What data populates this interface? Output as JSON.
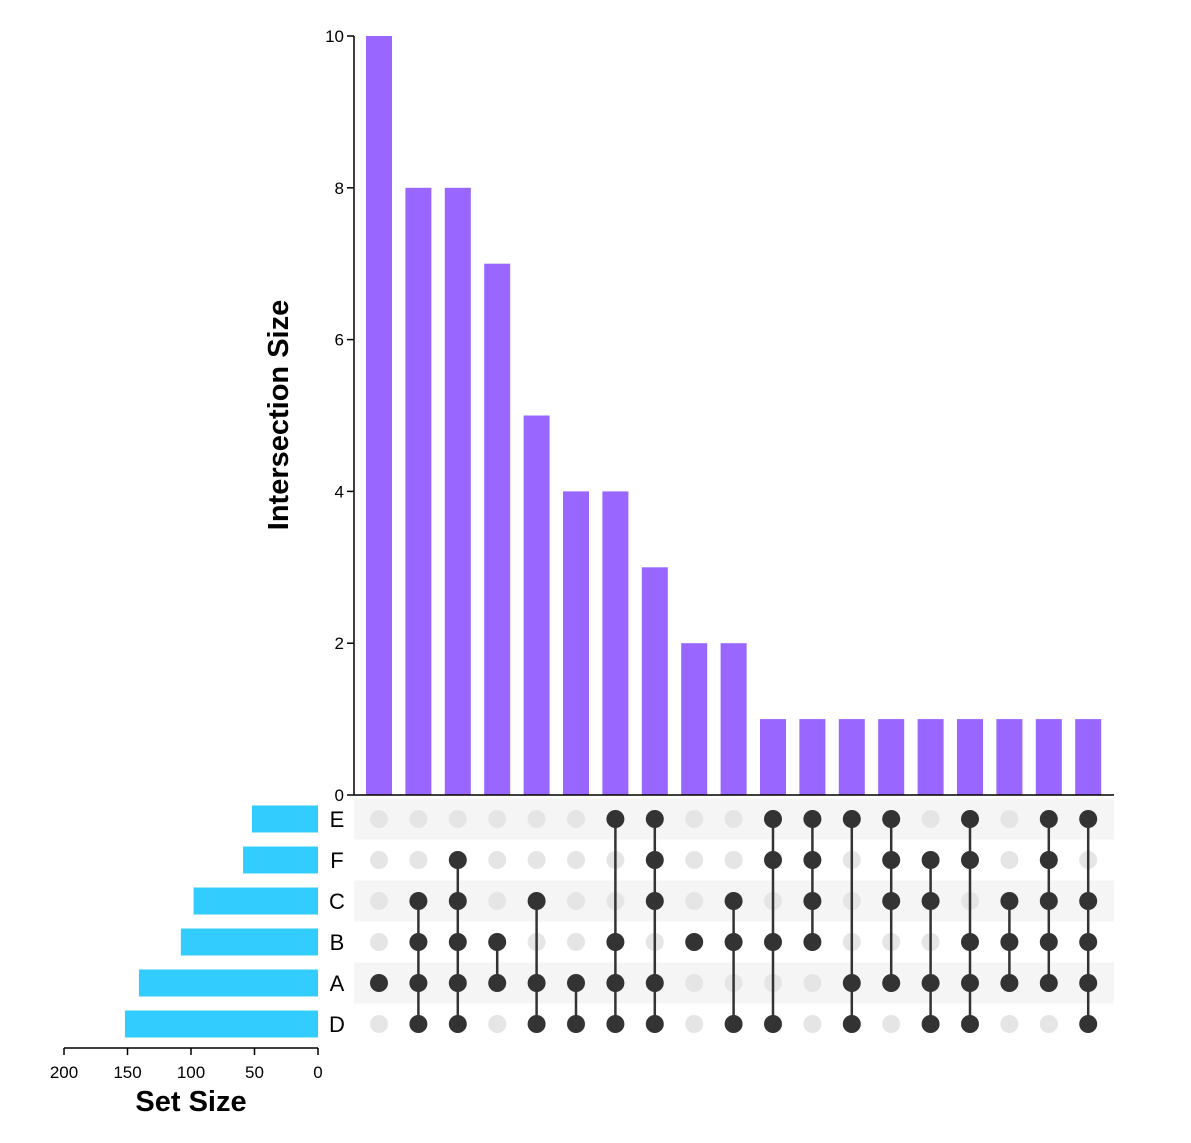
{
  "colors": {
    "intersection_bar": "#9966FF",
    "set_bar": "#33CCFF",
    "dot_active": "#333333",
    "dot_inactive": "#E5E5E5",
    "stripe": "#F5F5F5",
    "axis": "#000000"
  },
  "chart_data": {
    "type": "upset",
    "sets": [
      "E",
      "F",
      "C",
      "B",
      "A",
      "D"
    ],
    "set_sizes": [
      52,
      59,
      98,
      108,
      141,
      152
    ],
    "set_size_axis": {
      "label": "Set Size",
      "ticks": [
        200,
        150,
        100,
        50,
        0
      ],
      "range": [
        200,
        0
      ]
    },
    "intersection_axis": {
      "label": "Intersection Size",
      "ticks": [
        0,
        2,
        4,
        6,
        8,
        10
      ],
      "range": [
        0,
        10
      ]
    },
    "intersections": [
      {
        "size": 10,
        "sets": [
          "A"
        ]
      },
      {
        "size": 8,
        "sets": [
          "C",
          "B",
          "A",
          "D"
        ]
      },
      {
        "size": 8,
        "sets": [
          "F",
          "C",
          "B",
          "A",
          "D"
        ]
      },
      {
        "size": 7,
        "sets": [
          "B",
          "A"
        ]
      },
      {
        "size": 5,
        "sets": [
          "C",
          "A",
          "D"
        ]
      },
      {
        "size": 4,
        "sets": [
          "A",
          "D"
        ]
      },
      {
        "size": 4,
        "sets": [
          "E",
          "B",
          "A",
          "D"
        ]
      },
      {
        "size": 3,
        "sets": [
          "E",
          "F",
          "C",
          "A",
          "D"
        ]
      },
      {
        "size": 2,
        "sets": [
          "B"
        ]
      },
      {
        "size": 2,
        "sets": [
          "C",
          "B",
          "D"
        ]
      },
      {
        "size": 1,
        "sets": [
          "E",
          "F",
          "B",
          "D"
        ]
      },
      {
        "size": 1,
        "sets": [
          "E",
          "F",
          "C",
          "B"
        ]
      },
      {
        "size": 1,
        "sets": [
          "E",
          "A",
          "D"
        ]
      },
      {
        "size": 1,
        "sets": [
          "E",
          "F",
          "C",
          "A"
        ]
      },
      {
        "size": 1,
        "sets": [
          "F",
          "C",
          "A",
          "D"
        ]
      },
      {
        "size": 1,
        "sets": [
          "E",
          "F",
          "B",
          "A",
          "D"
        ]
      },
      {
        "size": 1,
        "sets": [
          "C",
          "B",
          "A"
        ]
      },
      {
        "size": 1,
        "sets": [
          "E",
          "F",
          "C",
          "B",
          "A"
        ]
      },
      {
        "size": 1,
        "sets": [
          "E",
          "C",
          "B",
          "A",
          "D"
        ]
      }
    ]
  }
}
